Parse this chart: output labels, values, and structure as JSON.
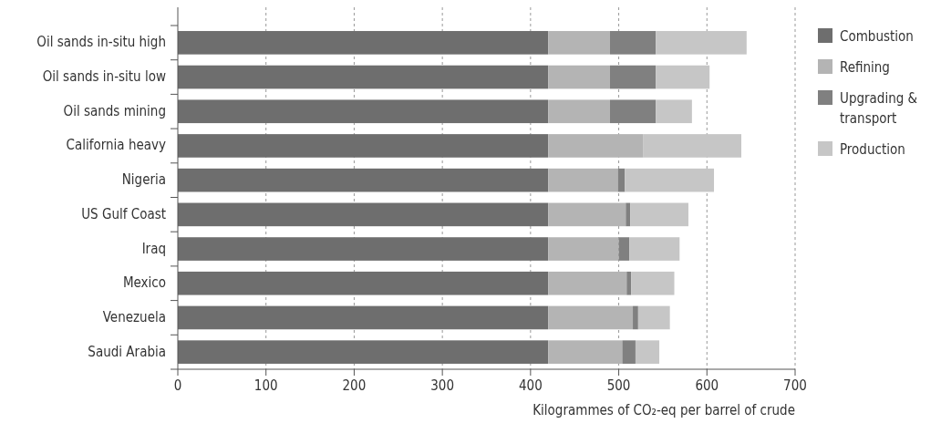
{
  "chart_data": {
    "type": "bar",
    "orientation": "horizontal",
    "stacked": true,
    "categories": [
      "Oil sands in-situ high",
      "Oil sands in-situ low",
      "Oil sands mining",
      "California heavy",
      "Nigeria",
      "US Gulf Coast",
      "Iraq",
      "Mexico",
      "Venezuela",
      "Saudi Arabia"
    ],
    "series": [
      {
        "name": "Combustion",
        "color": "#6e6e6e",
        "values": [
          420,
          420,
          420,
          420,
          420,
          420,
          420,
          420,
          420,
          420
        ]
      },
      {
        "name": "Refining",
        "color": "#b4b4b4",
        "values": [
          70,
          70,
          70,
          108,
          79,
          88,
          80,
          89,
          96,
          84
        ]
      },
      {
        "name": "Upgrading & transport",
        "color": "#808080",
        "values": [
          52,
          52,
          52,
          0,
          8,
          5,
          12,
          5,
          6,
          15
        ]
      },
      {
        "name": "Production",
        "color": "#c6c6c6",
        "values": [
          103,
          61,
          41,
          111,
          101,
          66,
          57,
          49,
          36,
          27
        ]
      }
    ],
    "xlim": [
      0,
      700
    ],
    "xticks": [
      0,
      100,
      200,
      300,
      400,
      500,
      600,
      700
    ],
    "xlabel": "Kilogrammes of CO₂-eq per barrel of crude",
    "grid": "x",
    "legend": "right"
  }
}
